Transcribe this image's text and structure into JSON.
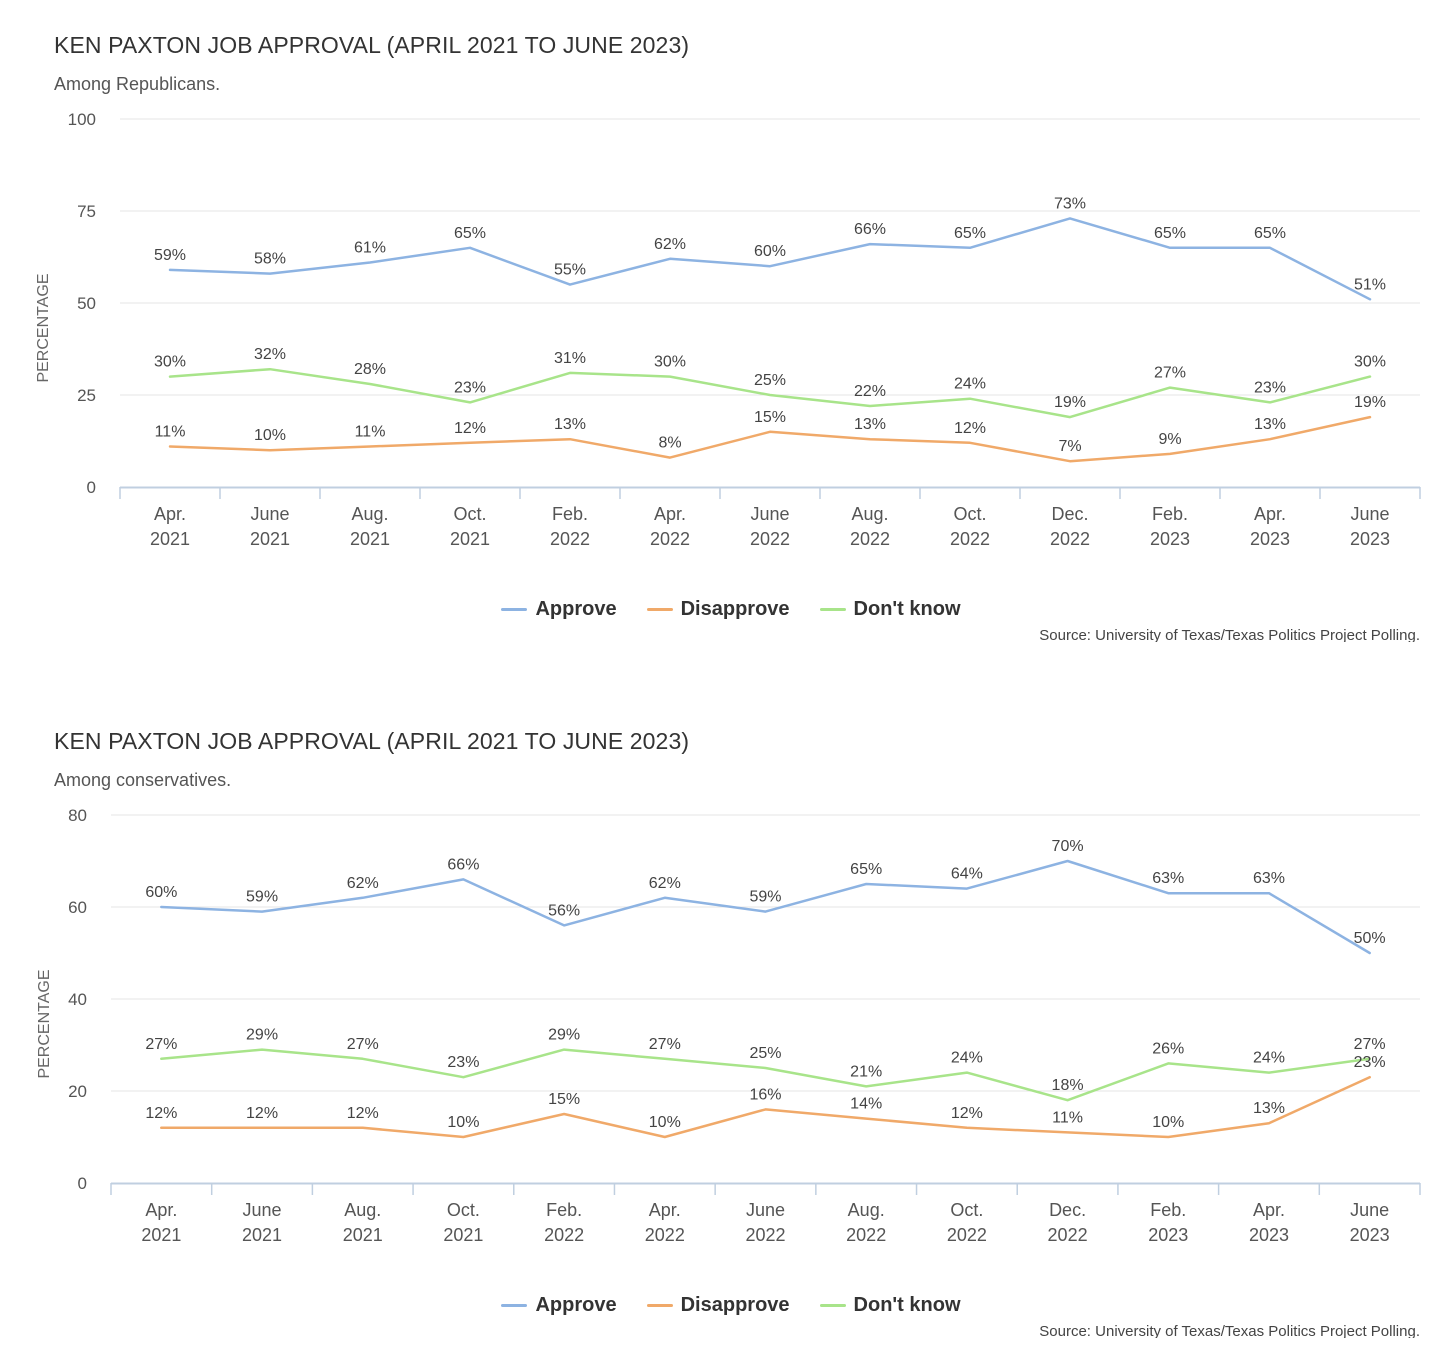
{
  "colors": {
    "approve": "#8db3e2",
    "disapprove": "#f0a969",
    "dont_know": "#a8e48a"
  },
  "chart_data": [
    {
      "type": "line",
      "title": "KEN PAXTON JOB APPROVAL (APRIL 2021 TO JUNE 2023)",
      "subtitle": "Among Republicans.",
      "ylabel": "PERCENTAGE",
      "xlabel": "",
      "ylim": [
        0,
        100
      ],
      "yticks": [
        "0",
        "25",
        "50",
        "75",
        "100"
      ],
      "ytick_values": [
        0,
        25,
        50,
        75,
        100
      ],
      "categories": [
        [
          "Apr.",
          "2021"
        ],
        [
          "June",
          "2021"
        ],
        [
          "Aug.",
          "2021"
        ],
        [
          "Oct.",
          "2021"
        ],
        [
          "Feb.",
          "2022"
        ],
        [
          "Apr.",
          "2022"
        ],
        [
          "June",
          "2022"
        ],
        [
          "Aug.",
          "2022"
        ],
        [
          "Oct.",
          "2022"
        ],
        [
          "Dec.",
          "2022"
        ],
        [
          "Feb.",
          "2023"
        ],
        [
          "Apr.",
          "2023"
        ],
        [
          "June",
          "2023"
        ]
      ],
      "series": [
        {
          "name": "Approve",
          "key": "approve",
          "values": [
            59,
            58,
            61,
            65,
            55,
            62,
            60,
            66,
            65,
            73,
            65,
            65,
            51
          ],
          "labels": [
            "59%",
            "58%",
            "61%",
            "65%",
            "55%",
            "62%",
            "60%",
            "66%",
            "65%",
            "73%",
            "65%",
            "65%",
            "51%"
          ]
        },
        {
          "name": "Disapprove",
          "key": "disapprove",
          "values": [
            11,
            10,
            11,
            12,
            13,
            8,
            15,
            13,
            12,
            7,
            9,
            13,
            19
          ],
          "labels": [
            "11%",
            "10%",
            "11%",
            "12%",
            "13%",
            "8%",
            "15%",
            "13%",
            "12%",
            "7%",
            "9%",
            "13%",
            "19%"
          ]
        },
        {
          "name": "Don't know",
          "key": "dont_know",
          "values": [
            30,
            32,
            28,
            23,
            31,
            30,
            25,
            22,
            24,
            19,
            27,
            23,
            30
          ],
          "labels": [
            "30%",
            "32%",
            "28%",
            "23%",
            "31%",
            "30%",
            "25%",
            "22%",
            "24%",
            "19%",
            "27%",
            "23%",
            "30%"
          ]
        }
      ],
      "legend": [
        "Approve",
        "Disapprove",
        "Don't know"
      ],
      "legend_position": "bottom-center",
      "grid": true,
      "source": "Source: University of Texas/Texas Politics Project Polling."
    },
    {
      "type": "line",
      "title": "KEN PAXTON JOB APPROVAL (APRIL 2021 TO JUNE 2023)",
      "subtitle": "Among conservatives.",
      "ylabel": "PERCENTAGE",
      "xlabel": "",
      "ylim": [
        0,
        80
      ],
      "yticks": [
        "0",
        "20",
        "40",
        "60",
        "80"
      ],
      "ytick_values": [
        0,
        20,
        40,
        60,
        80
      ],
      "categories": [
        [
          "Apr.",
          "2021"
        ],
        [
          "June",
          "2021"
        ],
        [
          "Aug.",
          "2021"
        ],
        [
          "Oct.",
          "2021"
        ],
        [
          "Feb.",
          "2022"
        ],
        [
          "Apr.",
          "2022"
        ],
        [
          "June",
          "2022"
        ],
        [
          "Aug.",
          "2022"
        ],
        [
          "Oct.",
          "2022"
        ],
        [
          "Dec.",
          "2022"
        ],
        [
          "Feb.",
          "2023"
        ],
        [
          "Apr.",
          "2023"
        ],
        [
          "June",
          "2023"
        ]
      ],
      "series": [
        {
          "name": "Approve",
          "key": "approve",
          "values": [
            60,
            59,
            62,
            66,
            56,
            62,
            59,
            65,
            64,
            70,
            63,
            63,
            50
          ],
          "labels": [
            "60%",
            "59%",
            "62%",
            "66%",
            "56%",
            "62%",
            "59%",
            "65%",
            "64%",
            "70%",
            "63%",
            "63%",
            "50%"
          ]
        },
        {
          "name": "Disapprove",
          "key": "disapprove",
          "values": [
            12,
            12,
            12,
            10,
            15,
            10,
            16,
            14,
            12,
            11,
            10,
            13,
            23
          ],
          "labels": [
            "12%",
            "12%",
            "12%",
            "10%",
            "15%",
            "10%",
            "16%",
            "14%",
            "12%",
            "11%",
            "10%",
            "13%",
            "23%"
          ]
        },
        {
          "name": "Don't know",
          "key": "dont_know",
          "values": [
            27,
            29,
            27,
            23,
            29,
            27,
            25,
            21,
            24,
            18,
            26,
            24,
            27
          ],
          "labels": [
            "27%",
            "29%",
            "27%",
            "23%",
            "29%",
            "27%",
            "25%",
            "21%",
            "24%",
            "18%",
            "26%",
            "24%",
            "27%"
          ]
        }
      ],
      "legend": [
        "Approve",
        "Disapprove",
        "Don't know"
      ],
      "legend_position": "bottom-center",
      "grid": true,
      "source": "Source: University of Texas/Texas Politics Project Polling."
    }
  ]
}
